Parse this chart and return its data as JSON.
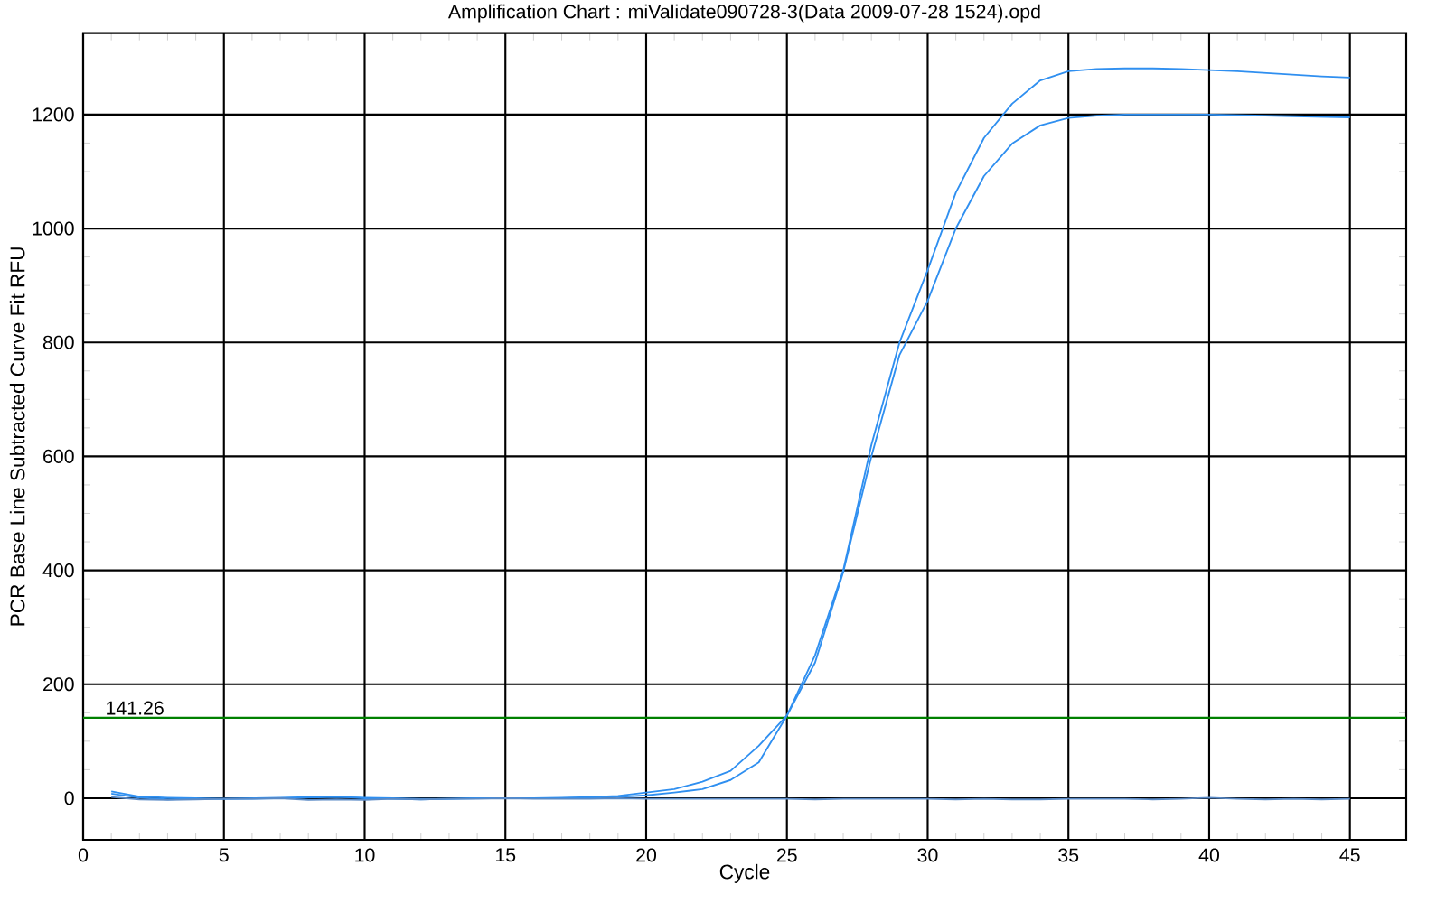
{
  "chart_data": {
    "type": "line",
    "title": "Amplification Chart : miValidate090728-3(Data 2009-07-28 1524).opd",
    "xlabel": "Cycle",
    "ylabel": "PCR Base Line Subtracted Curve Fit RFU",
    "x": [
      1,
      2,
      3,
      4,
      5,
      6,
      7,
      8,
      9,
      10,
      11,
      12,
      13,
      14,
      15,
      16,
      17,
      18,
      19,
      20,
      21,
      22,
      23,
      24,
      25,
      26,
      27,
      28,
      29,
      30,
      31,
      32,
      33,
      34,
      35,
      36,
      37,
      38,
      39,
      40,
      41,
      42,
      43,
      44,
      45
    ],
    "series": [
      {
        "color": "#2f8ff0",
        "values": [
          12,
          3,
          1,
          0,
          -1,
          -1,
          0,
          1,
          2,
          1,
          0,
          -1,
          -1,
          0,
          0,
          0,
          1,
          2,
          4,
          10,
          16,
          29,
          48,
          92,
          145,
          251,
          400,
          620,
          800,
          927,
          1063,
          1159,
          1219,
          1260,
          1276,
          1280,
          1281,
          1281,
          1280,
          1278,
          1276,
          1273,
          1270,
          1267,
          1265
        ]
      },
      {
        "color": "#2f8ff0",
        "values": [
          8,
          1,
          -2,
          -1,
          -1,
          0,
          1,
          2,
          3,
          0,
          -1,
          -2,
          -1,
          0,
          0,
          0,
          0,
          1,
          2,
          5,
          10,
          16,
          32,
          63,
          145,
          238,
          397,
          600,
          778,
          873,
          1000,
          1092,
          1149,
          1181,
          1194,
          1198,
          1200,
          1200,
          1200,
          1200,
          1199,
          1198,
          1197,
          1196,
          1195
        ]
      },
      {
        "color": "#5a8ac6",
        "values": [
          2,
          -2,
          -3,
          -2,
          -1,
          -1,
          0,
          -3,
          -2,
          -3,
          -1,
          -2,
          -1,
          -1,
          0,
          -1,
          -1,
          -1,
          0,
          -1,
          -1,
          -1,
          -1,
          -1,
          -1,
          -2,
          -1,
          -1,
          -1,
          -1,
          -2,
          -1,
          -2,
          -2,
          -1,
          -1,
          -1,
          -2,
          -1,
          1,
          -1,
          -2,
          -1,
          -2,
          -1
        ]
      }
    ],
    "xlim": [
      0,
      47
    ],
    "ylim": [
      -73,
      1343
    ],
    "xticks": [
      0,
      5,
      10,
      15,
      20,
      25,
      30,
      35,
      40,
      45
    ],
    "yticks": [
      0,
      200,
      400,
      600,
      800,
      1000,
      1200
    ],
    "ref_lines": [
      {
        "axis": "y",
        "value": 141.26,
        "label": "141.26",
        "color": "#008000"
      }
    ],
    "grid": true,
    "marker": "none",
    "line_style": "solid"
  }
}
